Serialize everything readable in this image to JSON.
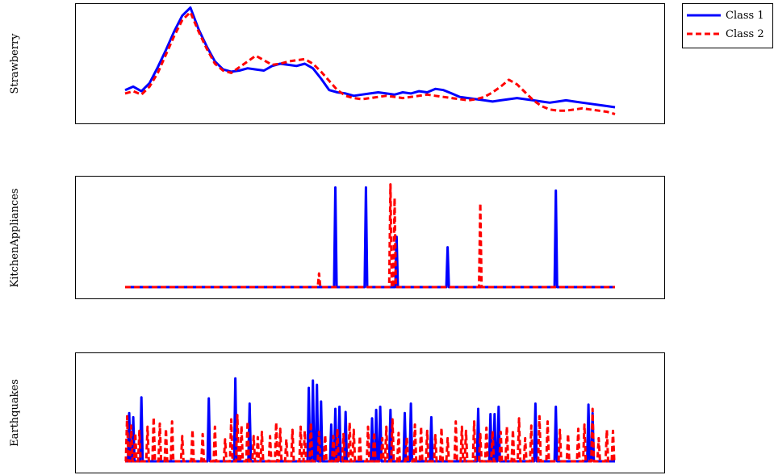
{
  "chart_data": [
    {
      "type": "line",
      "ylabel": "Strawberry",
      "x": [
        0,
        4,
        8,
        12,
        16,
        20,
        24,
        28,
        32,
        36,
        40,
        44,
        48,
        52,
        56,
        60,
        64,
        68,
        72,
        76,
        80,
        84,
        88,
        92,
        96,
        100,
        104,
        108,
        112,
        116,
        120,
        124,
        128,
        132,
        136,
        140,
        144,
        148,
        152,
        156,
        160,
        164,
        168,
        172,
        176,
        180,
        184,
        188,
        192,
        196,
        200,
        204,
        208,
        212,
        216,
        220,
        224,
        228,
        232,
        236,
        240
      ],
      "series": [
        {
          "name": "Class 1",
          "color": "#0000ff",
          "dash": "solid",
          "values": [
            0.27,
            0.3,
            0.26,
            0.33,
            0.47,
            0.62,
            0.78,
            0.92,
            0.99,
            0.8,
            0.65,
            0.52,
            0.45,
            0.43,
            0.44,
            0.46,
            0.45,
            0.44,
            0.48,
            0.5,
            0.49,
            0.48,
            0.5,
            0.46,
            0.37,
            0.27,
            0.25,
            0.24,
            0.22,
            0.23,
            0.24,
            0.25,
            0.24,
            0.23,
            0.25,
            0.24,
            0.26,
            0.25,
            0.28,
            0.27,
            0.24,
            0.21,
            0.2,
            0.19,
            0.18,
            0.17,
            0.18,
            0.19,
            0.2,
            0.19,
            0.18,
            0.17,
            0.16,
            0.17,
            0.18,
            0.17,
            0.16,
            0.15,
            0.14,
            0.13,
            0.12
          ]
        },
        {
          "name": "Class 2",
          "color": "#ff0000",
          "dash": "dashed",
          "values": [
            0.24,
            0.26,
            0.23,
            0.3,
            0.42,
            0.58,
            0.74,
            0.88,
            0.95,
            0.78,
            0.63,
            0.5,
            0.44,
            0.42,
            0.47,
            0.52,
            0.57,
            0.53,
            0.49,
            0.5,
            0.52,
            0.53,
            0.54,
            0.5,
            0.43,
            0.35,
            0.27,
            0.22,
            0.2,
            0.19,
            0.2,
            0.21,
            0.22,
            0.21,
            0.2,
            0.21,
            0.22,
            0.23,
            0.22,
            0.21,
            0.2,
            0.19,
            0.18,
            0.19,
            0.21,
            0.25,
            0.3,
            0.36,
            0.32,
            0.25,
            0.18,
            0.13,
            0.1,
            0.09,
            0.09,
            0.1,
            0.11,
            0.1,
            0.09,
            0.08,
            0.06
          ]
        }
      ]
    },
    {
      "type": "line",
      "ylabel": "KitchenAppliances",
      "x_range": [
        0,
        240
      ],
      "series": [
        {
          "name": "Class 1",
          "color": "#0000ff",
          "dash": "solid",
          "spikes": [
            [
              103,
              0.95
            ],
            [
              118,
              0.95
            ],
            [
              133,
              0.48
            ],
            [
              158,
              0.38
            ],
            [
              211,
              0.92
            ]
          ]
        },
        {
          "name": "Class 2",
          "color": "#ff0000",
          "dash": "dashed",
          "spikes": [
            [
              95,
              0.13
            ],
            [
              130,
              0.98
            ],
            [
              132,
              0.85
            ],
            [
              174,
              0.8
            ]
          ]
        }
      ]
    },
    {
      "type": "line",
      "ylabel": "Earthquakes",
      "x_range": [
        0,
        240
      ],
      "series": [
        {
          "name": "Class 1",
          "color": "#0000ff",
          "dash": "solid",
          "spikes": [
            [
              2,
              0.46
            ],
            [
              4,
              0.42
            ],
            [
              8,
              0.61
            ],
            [
              41,
              0.6
            ],
            [
              54,
              0.79
            ],
            [
              61,
              0.55
            ],
            [
              90,
              0.7
            ],
            [
              92,
              0.77
            ],
            [
              94,
              0.73
            ],
            [
              96,
              0.57
            ],
            [
              101,
              0.35
            ],
            [
              103,
              0.5
            ],
            [
              105,
              0.52
            ],
            [
              108,
              0.47
            ],
            [
              121,
              0.41
            ],
            [
              123,
              0.49
            ],
            [
              125,
              0.52
            ],
            [
              130,
              0.49
            ],
            [
              137,
              0.46
            ],
            [
              140,
              0.55
            ],
            [
              150,
              0.42
            ],
            [
              173,
              0.5
            ],
            [
              179,
              0.45
            ],
            [
              181,
              0.45
            ],
            [
              183,
              0.52
            ],
            [
              201,
              0.55
            ],
            [
              211,
              0.52
            ],
            [
              227,
              0.54
            ],
            [
              229,
              0.46
            ]
          ]
        },
        {
          "name": "Class 2",
          "color": "#ff0000",
          "dash": "dashed",
          "spikes": [
            [
              1,
              0.43
            ],
            [
              3,
              0.34
            ],
            [
              5,
              0.27
            ],
            [
              7,
              0.29
            ],
            [
              11,
              0.33
            ],
            [
              14,
              0.42
            ],
            [
              17,
              0.36
            ],
            [
              20,
              0.31
            ],
            [
              23,
              0.38
            ],
            [
              28,
              0.24
            ],
            [
              33,
              0.3
            ],
            [
              38,
              0.26
            ],
            [
              44,
              0.33
            ],
            [
              49,
              0.21
            ],
            [
              52,
              0.4
            ],
            [
              55,
              0.44
            ],
            [
              57,
              0.34
            ],
            [
              60,
              0.38
            ],
            [
              63,
              0.24
            ],
            [
              65,
              0.23
            ],
            [
              67,
              0.28
            ],
            [
              71,
              0.24
            ],
            [
              74,
              0.37
            ],
            [
              76,
              0.31
            ],
            [
              79,
              0.21
            ],
            [
              82,
              0.3
            ],
            [
              86,
              0.33
            ],
            [
              88,
              0.29
            ],
            [
              91,
              0.37
            ],
            [
              95,
              0.28
            ],
            [
              98,
              0.25
            ],
            [
              102,
              0.24
            ],
            [
              104,
              0.31
            ],
            [
              107,
              0.26
            ],
            [
              110,
              0.37
            ],
            [
              112,
              0.3
            ],
            [
              115,
              0.24
            ],
            [
              119,
              0.33
            ],
            [
              122,
              0.28
            ],
            [
              126,
              0.22
            ],
            [
              128,
              0.33
            ],
            [
              131,
              0.4
            ],
            [
              134,
              0.27
            ],
            [
              138,
              0.23
            ],
            [
              142,
              0.35
            ],
            [
              145,
              0.33
            ],
            [
              148,
              0.29
            ],
            [
              152,
              0.25
            ],
            [
              155,
              0.32
            ],
            [
              158,
              0.22
            ],
            [
              162,
              0.38
            ],
            [
              165,
              0.33
            ],
            [
              167,
              0.29
            ],
            [
              171,
              0.38
            ],
            [
              174,
              0.26
            ],
            [
              177,
              0.32
            ],
            [
              180,
              0.29
            ],
            [
              184,
              0.28
            ],
            [
              187,
              0.33
            ],
            [
              190,
              0.3
            ],
            [
              193,
              0.41
            ],
            [
              196,
              0.22
            ],
            [
              199,
              0.34
            ],
            [
              203,
              0.43
            ],
            [
              207,
              0.38
            ],
            [
              213,
              0.3
            ],
            [
              217,
              0.26
            ],
            [
              222,
              0.31
            ],
            [
              225,
              0.35
            ],
            [
              229,
              0.5
            ],
            [
              232,
              0.22
            ],
            [
              236,
              0.3
            ],
            [
              239,
              0.29
            ]
          ]
        }
      ]
    }
  ],
  "legend": {
    "position": "top-right",
    "entries": [
      {
        "label": "Class 1",
        "color": "#0000ff",
        "dash": "solid"
      },
      {
        "label": "Class 2",
        "color": "#ff0000",
        "dash": "dashed"
      }
    ]
  }
}
